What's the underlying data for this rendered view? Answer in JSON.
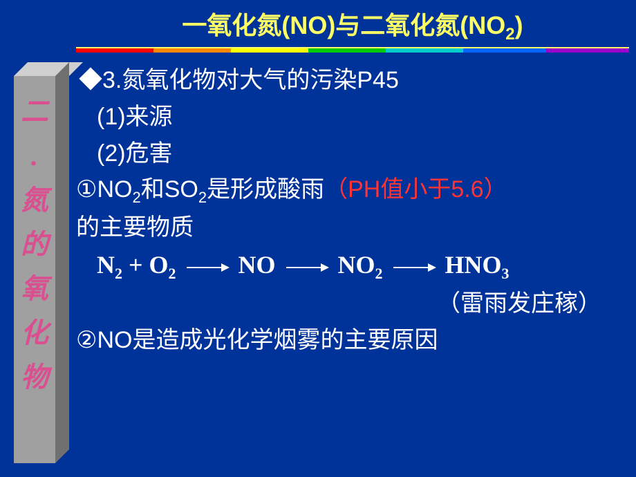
{
  "sidebar": {
    "chars": [
      "二",
      "氮",
      "的",
      "氧",
      "化",
      "物"
    ],
    "dot": "."
  },
  "title": {
    "prefix": "一氧化氮(NO)与二氧化氮(NO",
    "sub": "2",
    "suffix": ")"
  },
  "bullet3": "◆3.氮氧化物对大气的污染P45",
  "item1": "(1)来源",
  "item2": "(2)危害",
  "acid": {
    "p1": "①NO",
    "s1": "2",
    "p2": "和SO",
    "s2": "2",
    "p3": "是形成酸雨",
    "red": "（PH值小于5.6）",
    "p4": "的主要物质"
  },
  "equation": {
    "n2": "N",
    "n2sub": "2",
    "plus": " + O",
    "o2sub": "2",
    "no": "NO",
    "no2": "NO",
    "no2sub": "2",
    "hno3": "HNO",
    "hno3sub": "3"
  },
  "thunder": "（雷雨发庄稼）",
  "smog": "②NO是造成光化学烟雾的主要原因",
  "colors": {
    "bg": "#003399",
    "yellow": "#ffff66",
    "white": "#ffffff",
    "red": "#ff3333",
    "sidebar_text": "#d94f8f"
  }
}
